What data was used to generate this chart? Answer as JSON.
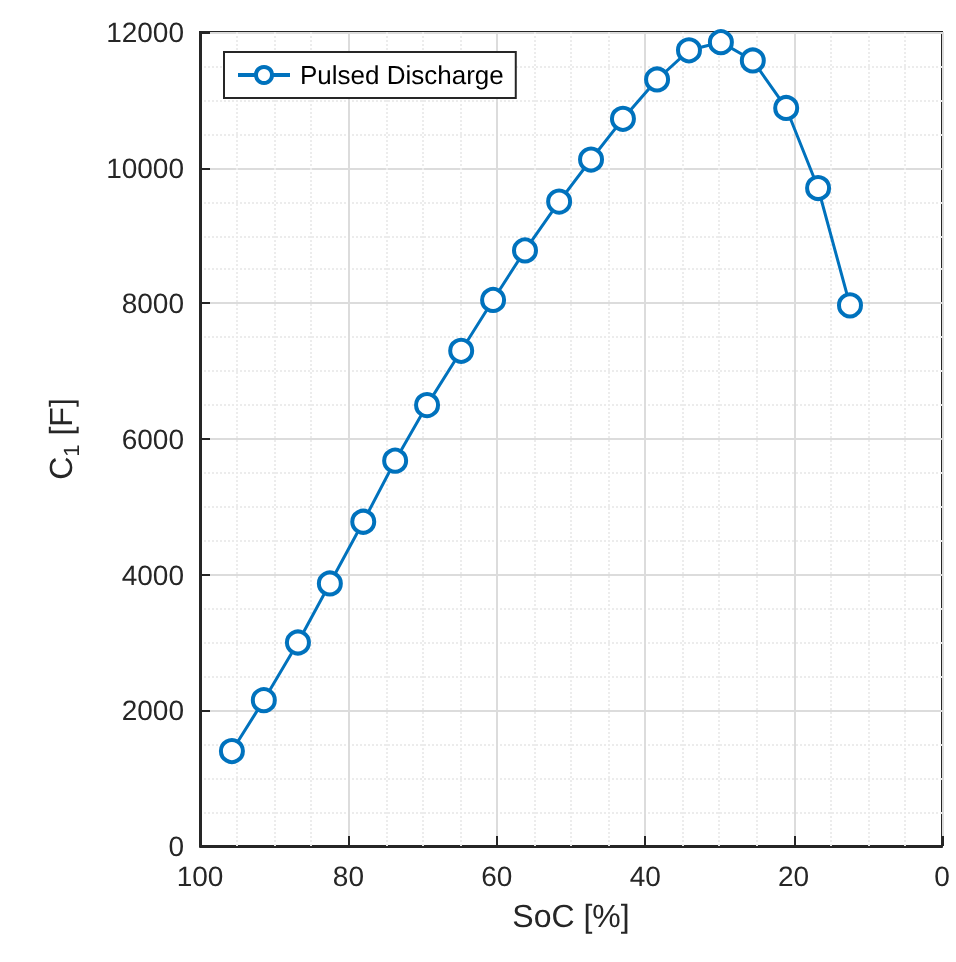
{
  "chart_data": {
    "type": "line",
    "xlabel": "SoC [%]",
    "ylabel": "C$_{1}$ [F]",
    "series": [
      {
        "name": "Pulsed Discharge",
        "color": "#0072bd",
        "x": [
          95.7,
          91.4,
          86.8,
          82.5,
          78,
          73.7,
          69.4,
          64.8,
          60.5,
          56.2,
          51.6,
          47.3,
          43,
          38.4,
          34.1,
          29.8,
          25.5,
          21,
          16.7,
          12.4
        ],
        "values": [
          1400,
          2150,
          3000,
          3870,
          4780,
          5680,
          6500,
          7300,
          8050,
          8780,
          9500,
          10120,
          10720,
          11300,
          11730,
          11850,
          11580,
          10880,
          9700,
          7970
        ]
      }
    ],
    "xlim": [
      100,
      0
    ],
    "xticks": [
      100,
      80,
      60,
      40,
      20,
      0
    ],
    "ylim": [
      0,
      12000
    ],
    "yticks": [
      0,
      2000,
      4000,
      6000,
      8000,
      10000,
      12000
    ],
    "grid": true,
    "legend": "top left",
    "marker": "circle",
    "line_style": "solid"
  }
}
